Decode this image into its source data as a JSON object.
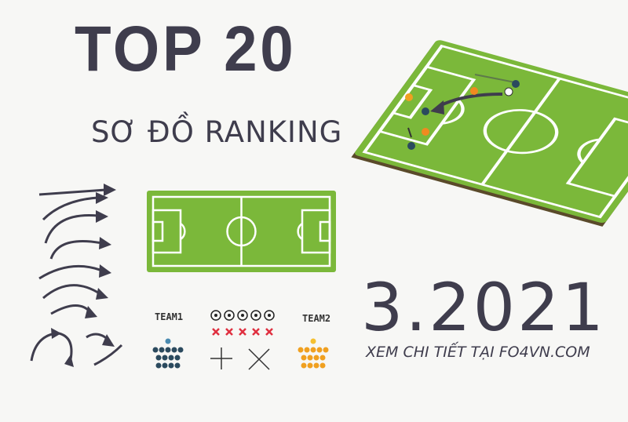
{
  "header": {
    "title": "TOP 20",
    "subtitle": "SƠ ĐỒ RANKING"
  },
  "date": "3.2021",
  "cta": "XEM CHI TIẾT TẠI FO4VN.COM",
  "legend": {
    "team1": "TEAM1",
    "team2": "TEAM2"
  },
  "colors": {
    "text": "#3f3d4d",
    "pitch": "#7bb83a",
    "team1": "#2b4a5e",
    "team2": "#f0a020",
    "cross": "#e03040"
  }
}
